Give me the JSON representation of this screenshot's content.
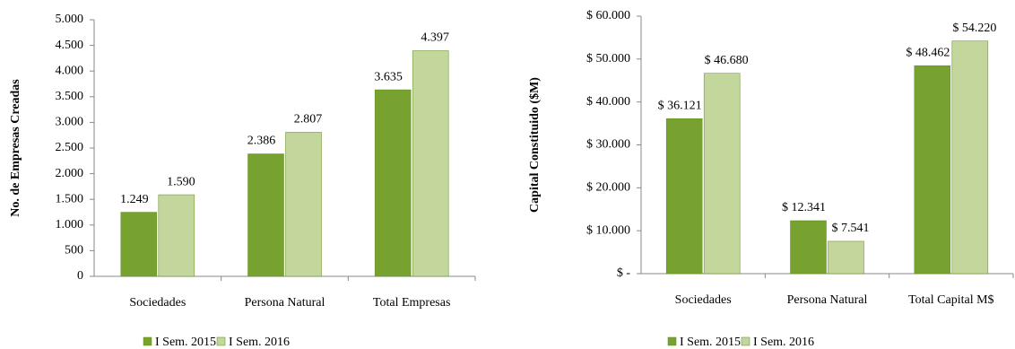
{
  "chart_data": [
    {
      "type": "bar",
      "y_label": "No. de Empresas Creadas",
      "categories": [
        "Sociedades",
        "Persona Natural",
        "Total Empresas"
      ],
      "series": [
        {
          "name": "I Sem. 2015",
          "color": "#77a22f",
          "values": [
            1249,
            2386,
            3635
          ],
          "value_labels": [
            "1.249",
            "2.386",
            "3.635"
          ]
        },
        {
          "name": "I Sem. 2016",
          "color": "#c3d69b",
          "values": [
            1590,
            2807,
            4397
          ],
          "value_labels": [
            "1.590",
            "2.807",
            "4.397"
          ]
        }
      ],
      "ylim": [
        0,
        5000
      ],
      "yticks": [
        0,
        500,
        {
          "value": 1000,
          "label": "1.000"
        },
        {
          "value": 1500,
          "label": "1.500"
        },
        {
          "value": 2000,
          "label": "2.000"
        },
        {
          "value": 2500,
          "label": "2.500"
        },
        {
          "value": 3000,
          "label": "3.000"
        },
        {
          "value": 3500,
          "label": "3.500"
        },
        {
          "value": 4000,
          "label": "4.000"
        },
        {
          "value": 4500,
          "label": "4.500"
        },
        {
          "value": 5000,
          "label": "5.000"
        }
      ]
    },
    {
      "type": "bar",
      "y_label": "Capital Constituido ($M)",
      "categories": [
        "Sociedades",
        "Persona Natural",
        "Total Capital M$"
      ],
      "series": [
        {
          "name": "I Sem. 2015",
          "color": "#77a22f",
          "values": [
            36121,
            12341,
            48462
          ],
          "value_labels": [
            "$ 36.121",
            "$ 12.341",
            "$ 48.462"
          ]
        },
        {
          "name": "I Sem. 2016",
          "color": "#c3d69b",
          "values": [
            46680,
            7541,
            54220
          ],
          "value_labels": [
            "$ 46.680",
            "$ 7.541",
            "$ 54.220"
          ]
        }
      ],
      "ylim": [
        0,
        60000
      ],
      "yticks": [
        {
          "value": 0,
          "label": "$ -"
        },
        {
          "value": 10000,
          "label": "$ 10.000"
        },
        {
          "value": 20000,
          "label": "$ 20.000"
        },
        {
          "value": 30000,
          "label": "$ 30.000"
        },
        {
          "value": 40000,
          "label": "$ 40.000"
        },
        {
          "value": 50000,
          "label": "$ 50.000"
        },
        {
          "value": 60000,
          "label": "$ 60.000"
        }
      ]
    }
  ]
}
